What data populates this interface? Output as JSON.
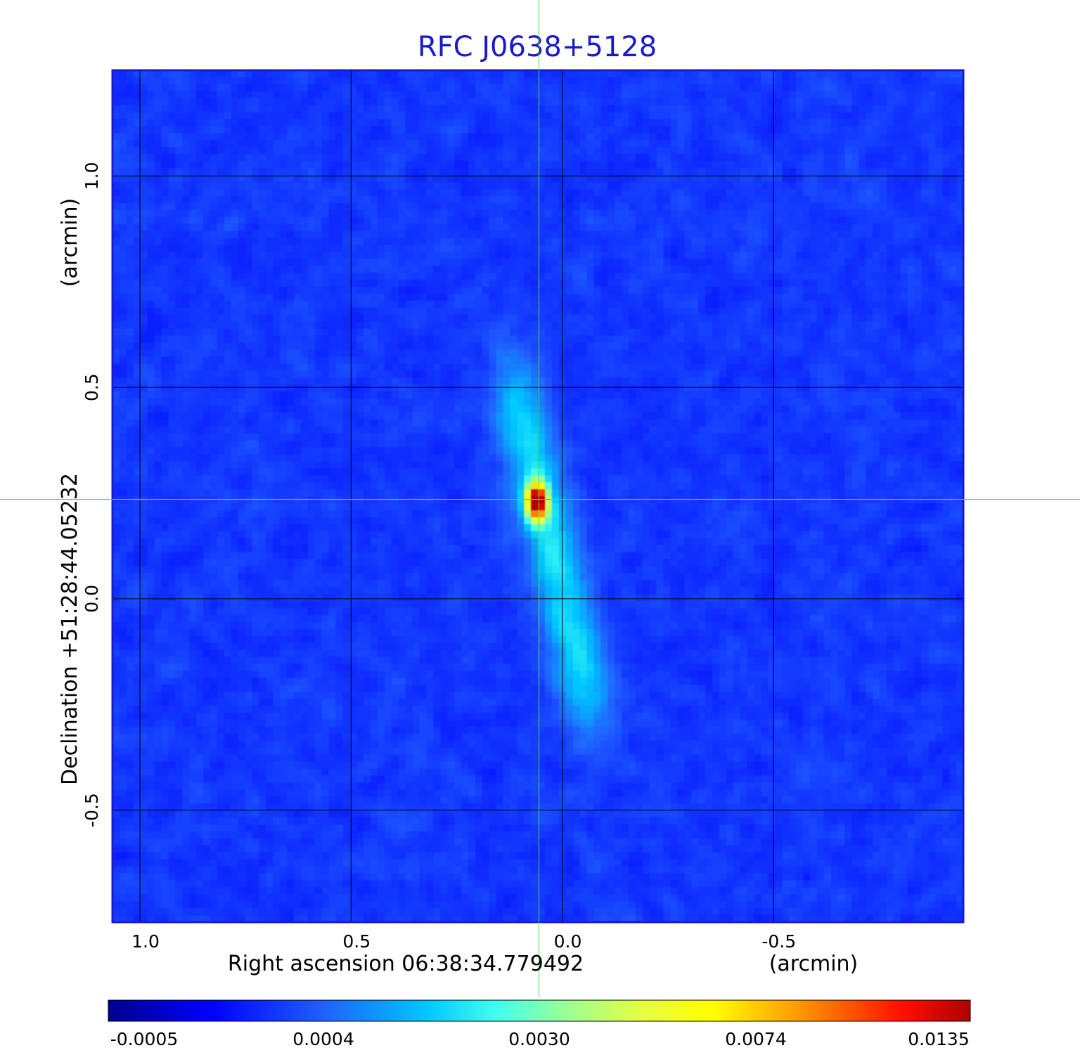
{
  "chart_data": {
    "type": "heatmap",
    "title": "RFC J0638+5128",
    "xlabel": "Right ascension  06:38:34.779492",
    "xunit": "(arcmin)",
    "ylabel": "Declination  +51:28:44.05232",
    "yunit": "(arcmin)",
    "xlim": [
      1.065,
      -0.95
    ],
    "ylim": [
      -0.765,
      1.25
    ],
    "x_ticks": [
      1.0,
      0.5,
      0.0,
      -0.5
    ],
    "x_tick_labels": [
      "1.0",
      "0.5",
      "0.0",
      "-0.5"
    ],
    "y_ticks": [
      -0.5,
      0.0,
      0.5,
      1.0
    ],
    "y_tick_labels": [
      "-0.5",
      "0.0",
      "0.5",
      "1.0"
    ],
    "grid": true,
    "crosshair": {
      "x": 0.055,
      "y": 0.235
    },
    "colorbar": {
      "ticks": [
        -0.0005,
        0.0004,
        0.003,
        0.0074,
        0.0135
      ],
      "tick_labels": [
        "-0.0005",
        "0.0004",
        "0.0030",
        "0.0074",
        "0.0135"
      ],
      "colormap": "jet"
    },
    "emission": {
      "peak_value": 0.0135,
      "peak_position": [
        0.06,
        0.23
      ],
      "extent_from": [
        0.1,
        0.45
      ],
      "extent_to": [
        -0.05,
        -0.2
      ],
      "background_level": -0.0001
    }
  },
  "colors": {
    "title": "#1a1acc",
    "frame": "#1a1acc",
    "grid": "#000000",
    "crosshair": "#44dd44",
    "text": "#000000"
  }
}
